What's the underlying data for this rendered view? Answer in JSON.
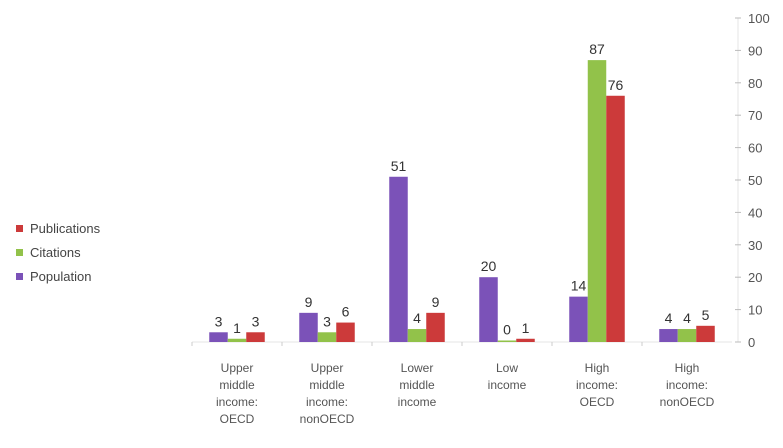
{
  "chart_data": {
    "type": "bar",
    "categories": [
      [
        "Upper",
        "middle",
        "income:",
        "OECD"
      ],
      [
        "Upper",
        "middle",
        "income:",
        "nonOECD"
      ],
      [
        "Lower",
        "middle",
        "income"
      ],
      [
        "Low",
        "income"
      ],
      [
        "High",
        "income:",
        "OECD"
      ],
      [
        "High",
        "income:",
        "nonOECD"
      ]
    ],
    "series": [
      {
        "name": "Population",
        "color": "#7b52b8",
        "values": [
          3,
          9,
          51,
          20,
          14,
          4
        ]
      },
      {
        "name": "Citations",
        "color": "#92c24a",
        "values": [
          1,
          3,
          4,
          0,
          87,
          4
        ]
      },
      {
        "name": "Publications",
        "color": "#cc3a3a",
        "values": [
          3,
          6,
          9,
          1,
          76,
          5
        ]
      }
    ],
    "legend_order": [
      "Publications",
      "Citations",
      "Population"
    ],
    "legend_position": "left",
    "ylim": [
      0,
      100
    ],
    "yticks": [
      "0",
      "10",
      "20",
      "30",
      "40",
      "50",
      "60",
      "70",
      "80",
      "90",
      "100"
    ],
    "y_axis_side": "right",
    "title": "",
    "xlabel": "",
    "ylabel": ""
  }
}
